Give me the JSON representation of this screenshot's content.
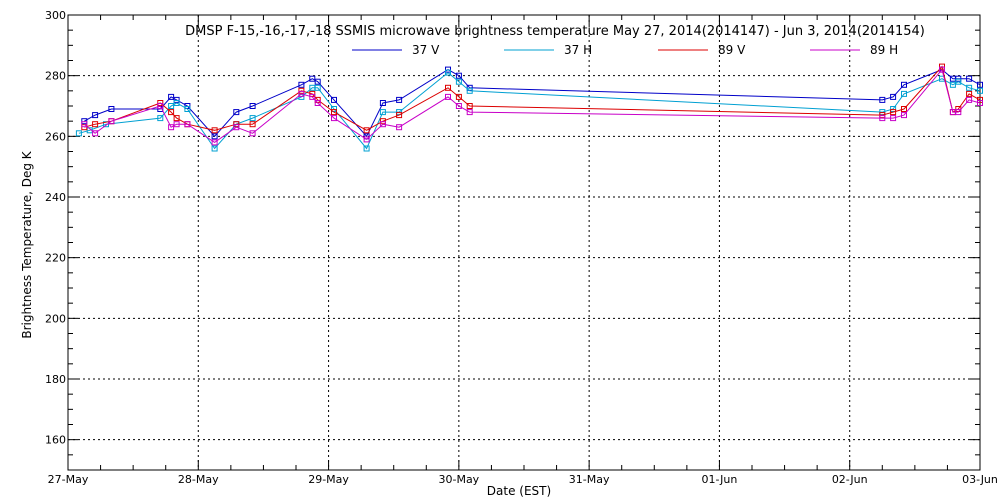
{
  "chart_data": {
    "type": "line",
    "title": "DMSP F-15,-16,-17,-18 SSMIS microwave brightness temperature May 27, 2014(2014147) - Jun  3, 2014(2014154)",
    "xlabel": "Date (EST)",
    "ylabel": "Brightness Temperature, Deg K",
    "xlim": [
      "27-May",
      "03-Jun"
    ],
    "ylim": [
      150,
      300
    ],
    "x_tick_labels": [
      "27-May",
      "28-May",
      "29-May",
      "30-May",
      "31-May",
      "01-Jun",
      "02-Jun",
      "03-Jun"
    ],
    "y_tick_labels": [
      "160",
      "180",
      "200",
      "220",
      "240",
      "260",
      "280",
      "300"
    ],
    "grid": true,
    "legend_position": "top-center",
    "series": [
      {
        "name": "37 V",
        "color": "#0000c8",
        "points": [
          [
            "2014-05-27T03:00",
            265
          ],
          [
            "2014-05-27T05:00",
            267
          ],
          [
            "2014-05-27T08:00",
            269
          ],
          [
            "2014-05-27T17:00",
            269
          ],
          [
            "2014-05-27T19:00",
            273
          ],
          [
            "2014-05-27T20:00",
            272
          ],
          [
            "2014-05-27T22:00",
            270
          ],
          [
            "2014-05-28T03:00",
            260
          ],
          [
            "2014-05-28T07:00",
            268
          ],
          [
            "2014-05-28T10:00",
            270
          ],
          [
            "2014-05-28T19:00",
            277
          ],
          [
            "2014-05-28T21:00",
            279
          ],
          [
            "2014-05-28T22:00",
            278
          ],
          [
            "2014-05-29T01:00",
            272
          ],
          [
            "2014-05-29T07:00",
            260
          ],
          [
            "2014-05-29T10:00",
            271
          ],
          [
            "2014-05-29T13:00",
            272
          ],
          [
            "2014-05-29T22:00",
            282
          ],
          [
            "2014-05-30T00:00",
            280
          ],
          [
            "2014-05-30T02:00",
            276
          ],
          [
            "2014-06-02T06:00",
            272
          ],
          [
            "2014-06-02T08:00",
            273
          ],
          [
            "2014-06-02T10:00",
            277
          ],
          [
            "2014-06-02T17:00",
            282
          ],
          [
            "2014-06-02T19:00",
            279
          ],
          [
            "2014-06-02T20:00",
            279
          ],
          [
            "2014-06-02T22:00",
            279
          ],
          [
            "2014-06-03T00:00",
            277
          ]
        ]
      },
      {
        "name": "37 H",
        "color": "#00a0d2",
        "points": [
          [
            "2014-05-27T02:00",
            261
          ],
          [
            "2014-05-27T04:00",
            262
          ],
          [
            "2014-05-27T07:00",
            264
          ],
          [
            "2014-05-27T17:00",
            266
          ],
          [
            "2014-05-27T19:00",
            270
          ],
          [
            "2014-05-27T20:00",
            271
          ],
          [
            "2014-05-27T22:00",
            269
          ],
          [
            "2014-05-28T03:00",
            256
          ],
          [
            "2014-05-28T07:00",
            264
          ],
          [
            "2014-05-28T10:00",
            266
          ],
          [
            "2014-05-28T19:00",
            273
          ],
          [
            "2014-05-28T21:00",
            276
          ],
          [
            "2014-05-28T22:00",
            276
          ],
          [
            "2014-05-29T01:00",
            269
          ],
          [
            "2014-05-29T07:00",
            256
          ],
          [
            "2014-05-29T10:00",
            268
          ],
          [
            "2014-05-29T13:00",
            268
          ],
          [
            "2014-05-29T22:00",
            281
          ],
          [
            "2014-05-30T00:00",
            278
          ],
          [
            "2014-05-30T02:00",
            275
          ],
          [
            "2014-06-02T06:00",
            268
          ],
          [
            "2014-06-02T08:00",
            269
          ],
          [
            "2014-06-02T10:00",
            274
          ],
          [
            "2014-06-02T17:00",
            279
          ],
          [
            "2014-06-02T19:00",
            277
          ],
          [
            "2014-06-02T20:00",
            278
          ],
          [
            "2014-06-02T22:00",
            276
          ],
          [
            "2014-06-03T00:00",
            275
          ]
        ]
      },
      {
        "name": "89 V",
        "color": "#dc0000",
        "points": [
          [
            "2014-05-27T03:00",
            263
          ],
          [
            "2014-05-27T05:00",
            264
          ],
          [
            "2014-05-27T08:00",
            265
          ],
          [
            "2014-05-27T17:00",
            271
          ],
          [
            "2014-05-27T19:00",
            268
          ],
          [
            "2014-05-27T20:00",
            266
          ],
          [
            "2014-05-27T22:00",
            264
          ],
          [
            "2014-05-28T03:00",
            262
          ],
          [
            "2014-05-28T07:00",
            264
          ],
          [
            "2014-05-28T10:00",
            264
          ],
          [
            "2014-05-28T19:00",
            275
          ],
          [
            "2014-05-28T21:00",
            274
          ],
          [
            "2014-05-28T22:00",
            272
          ],
          [
            "2014-05-29T01:00",
            268
          ],
          [
            "2014-05-29T07:00",
            262
          ],
          [
            "2014-05-29T10:00",
            265
          ],
          [
            "2014-05-29T13:00",
            267
          ],
          [
            "2014-05-29T22:00",
            276
          ],
          [
            "2014-05-30T00:00",
            273
          ],
          [
            "2014-05-30T02:00",
            270
          ],
          [
            "2014-06-02T06:00",
            267
          ],
          [
            "2014-06-02T08:00",
            268
          ],
          [
            "2014-06-02T10:00",
            269
          ],
          [
            "2014-06-02T17:00",
            283
          ],
          [
            "2014-06-02T19:00",
            268
          ],
          [
            "2014-06-02T20:00",
            269
          ],
          [
            "2014-06-02T22:00",
            274
          ],
          [
            "2014-06-03T00:00",
            272
          ]
        ]
      },
      {
        "name": "89 H",
        "color": "#c800c8",
        "points": [
          [
            "2014-05-27T03:00",
            264
          ],
          [
            "2014-05-27T05:00",
            261
          ],
          [
            "2014-05-27T08:00",
            265
          ],
          [
            "2014-05-27T17:00",
            270
          ],
          [
            "2014-05-27T19:00",
            263
          ],
          [
            "2014-05-27T20:00",
            264
          ],
          [
            "2014-05-27T22:00",
            264
          ],
          [
            "2014-05-28T03:00",
            258
          ],
          [
            "2014-05-28T07:00",
            263
          ],
          [
            "2014-05-28T10:00",
            261
          ],
          [
            "2014-05-28T19:00",
            274
          ],
          [
            "2014-05-28T21:00",
            273
          ],
          [
            "2014-05-28T22:00",
            271
          ],
          [
            "2014-05-29T01:00",
            266
          ],
          [
            "2014-05-29T07:00",
            259
          ],
          [
            "2014-05-29T10:00",
            264
          ],
          [
            "2014-05-29T13:00",
            263
          ],
          [
            "2014-05-29T22:00",
            273
          ],
          [
            "2014-05-30T00:00",
            270
          ],
          [
            "2014-05-30T02:00",
            268
          ],
          [
            "2014-06-02T06:00",
            266
          ],
          [
            "2014-06-02T08:00",
            266
          ],
          [
            "2014-06-02T10:00",
            267
          ],
          [
            "2014-06-02T17:00",
            282
          ],
          [
            "2014-06-02T19:00",
            268
          ],
          [
            "2014-06-02T20:00",
            268
          ],
          [
            "2014-06-02T22:00",
            272
          ],
          [
            "2014-06-03T00:00",
            271
          ]
        ]
      }
    ]
  }
}
